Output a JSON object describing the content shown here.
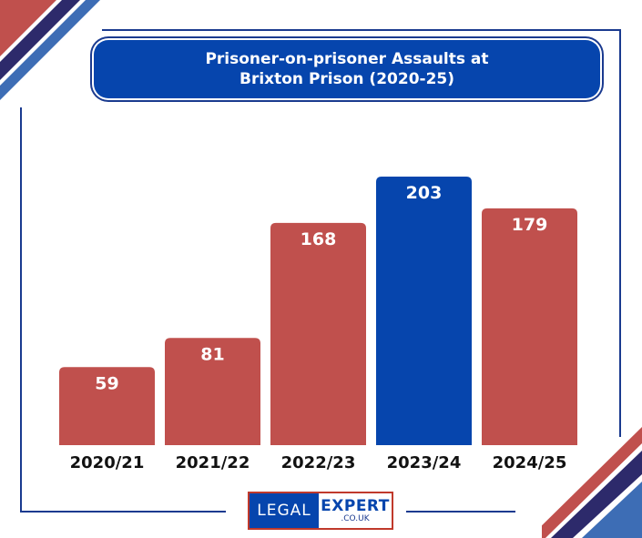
{
  "chart_data": {
    "type": "bar",
    "title": "Prisoner-on-prisoner Assaults at",
    "subtitle": "Brixton Prison (2020-25)",
    "categories": [
      "2020/21",
      "2021/22",
      "2022/23",
      "2023/24",
      "2024/25"
    ],
    "values": [
      59,
      81,
      168,
      203,
      179
    ],
    "bar_colors": [
      "#c0504d",
      "#c0504d",
      "#c0504d",
      "#0645ad",
      "#c0504d"
    ],
    "ylim": [
      0,
      203
    ],
    "grid": false,
    "xlabel": "",
    "ylabel": ""
  },
  "logo": {
    "legal": "LEGAL",
    "expert": "EXPERT",
    "domain": ".CO.UK"
  },
  "colors": {
    "accent_blue": "#0645ad",
    "accent_red": "#c0504d",
    "frame_navy": "#1a3a8f"
  }
}
